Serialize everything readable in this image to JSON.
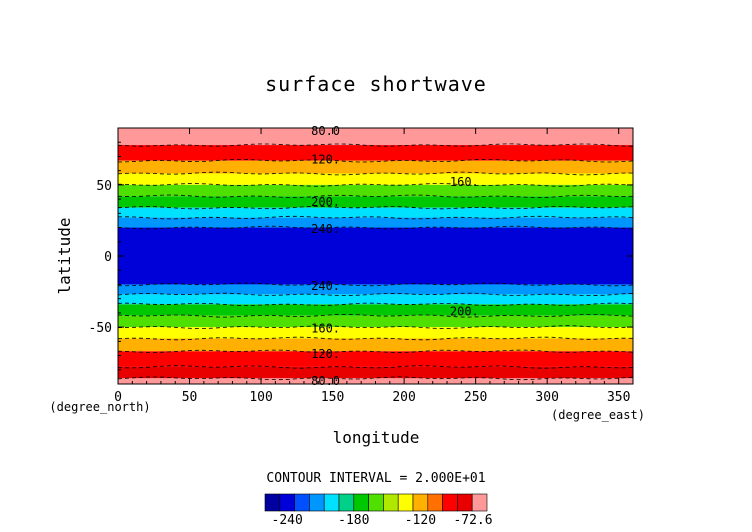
{
  "chart_data": {
    "type": "heatmap",
    "title": "surface shortwave",
    "xlabel": "longitude",
    "ylabel": "latitude",
    "x_unit": "(degree_east)",
    "y_unit": "(degree_north)",
    "xlim": [
      0,
      360
    ],
    "ylim": [
      -90,
      90
    ],
    "x_ticks": [
      "0",
      "50",
      "100",
      "150",
      "200",
      "250",
      "300",
      "350"
    ],
    "y_ticks": [
      "50",
      "0",
      "-50"
    ],
    "grid": false,
    "bands": [
      {
        "lat_min": 78,
        "lat_max": 90,
        "value": -72.6
      },
      {
        "lat_min": 67,
        "lat_max": 78,
        "value": -100
      },
      {
        "lat_min": 58,
        "lat_max": 67,
        "value": -120
      },
      {
        "lat_min": 50,
        "lat_max": 58,
        "value": -140
      },
      {
        "lat_min": 42,
        "lat_max": 50,
        "value": -160
      },
      {
        "lat_min": 34,
        "lat_max": 42,
        "value": -180
      },
      {
        "lat_min": 27,
        "lat_max": 34,
        "value": -200
      },
      {
        "lat_min": 20,
        "lat_max": 27,
        "value": -220
      },
      {
        "lat_min": -20,
        "lat_max": 20,
        "value": -240
      },
      {
        "lat_min": -27,
        "lat_max": -20,
        "value": -220
      },
      {
        "lat_min": -34,
        "lat_max": -27,
        "value": -200
      },
      {
        "lat_min": -42,
        "lat_max": -34,
        "value": -180
      },
      {
        "lat_min": -50,
        "lat_max": -42,
        "value": -160
      },
      {
        "lat_min": -58,
        "lat_max": -50,
        "value": -140
      },
      {
        "lat_min": -67,
        "lat_max": -58,
        "value": -120
      },
      {
        "lat_min": -78,
        "lat_max": -67,
        "value": -100
      },
      {
        "lat_min": -86,
        "lat_max": -78,
        "value": -80
      },
      {
        "lat_min": -90,
        "lat_max": -86,
        "value": -72.6
      }
    ],
    "contour_labels": [
      {
        "text": "80.0",
        "lon": 135,
        "lat": 88
      },
      {
        "text": "120.",
        "lon": 135,
        "lat": 68
      },
      {
        "text": "160.",
        "lon": 232,
        "lat": 52
      },
      {
        "text": "200.",
        "lon": 135,
        "lat": 38
      },
      {
        "text": "240.",
        "lon": 135,
        "lat": 19
      },
      {
        "text": "240.",
        "lon": 135,
        "lat": -21
      },
      {
        "text": "200.",
        "lon": 232,
        "lat": -39
      },
      {
        "text": "160.",
        "lon": 135,
        "lat": -51
      },
      {
        "text": "120.",
        "lon": 135,
        "lat": -69
      },
      {
        "text": "80.0",
        "lon": 135,
        "lat": -88
      }
    ],
    "contour_interval_text": "CONTOUR INTERVAL = 2.000E+01",
    "colorbar": {
      "colors": [
        "#0000a0",
        "#0000d8",
        "#0050ff",
        "#0096ff",
        "#00e0ff",
        "#00d088",
        "#00c800",
        "#50e000",
        "#b0e800",
        "#ffff00",
        "#ffb000",
        "#ff7000",
        "#ff0000",
        "#e80000",
        "#ff9999"
      ],
      "tick_labels": [
        "-240",
        "-180",
        "-120",
        "-72.6"
      ],
      "tick_values": [
        -240,
        -180,
        -120,
        -72.6
      ],
      "min": -260,
      "max": -60
    }
  }
}
